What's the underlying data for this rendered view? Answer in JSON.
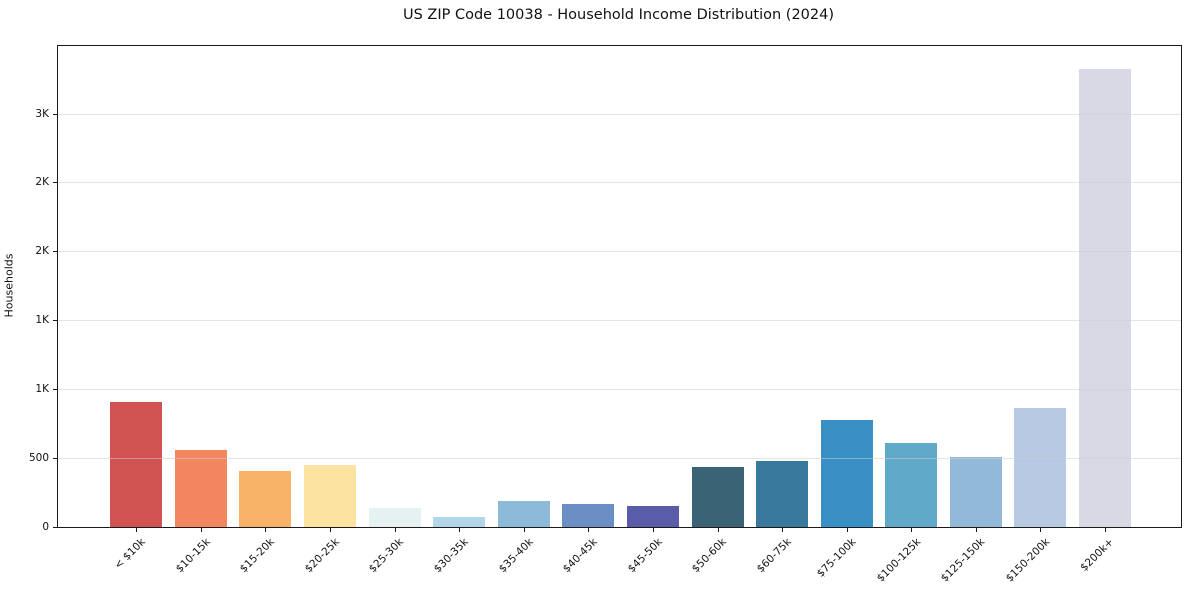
{
  "title": "US ZIP Code 10038 - Household Income Distribution (2024)",
  "chart_data": {
    "type": "bar",
    "title": "US ZIP Code 10038 - Household Income Distribution (2024)",
    "xlabel": "",
    "ylabel": "Households",
    "categories": [
      "< $10k",
      "$10-15k",
      "$15-20k",
      "$20-25k",
      "$25-30k",
      "$30-35k",
      "$35-40k",
      "$40-45k",
      "$45-50k",
      "$50-60k",
      "$60-75k",
      "$75-100k",
      "$100-125k",
      "$125-150k",
      "$150-200k",
      "$200k+"
    ],
    "values": [
      910,
      560,
      405,
      450,
      135,
      70,
      190,
      165,
      150,
      435,
      480,
      775,
      610,
      505,
      860,
      3320
    ],
    "bar_colors": [
      "#d15351",
      "#f2875f",
      "#f8b267",
      "#fbe3a2",
      "#e6f2f2",
      "#b3d6e8",
      "#8cbad8",
      "#6b8ec4",
      "#5a5ca9",
      "#3a6375",
      "#38789c",
      "#3990c4",
      "#61a9c9",
      "#93b9d8",
      "#b7c9e3",
      "#d8d9e5"
    ],
    "ylim": [
      0,
      3490
    ],
    "yticks": [
      {
        "value": 0,
        "label": "0"
      },
      {
        "value": 500,
        "label": "500"
      },
      {
        "value": 1000,
        "label": "1K"
      },
      {
        "value": 1500,
        "label": "1K"
      },
      {
        "value": 2000,
        "label": "2K"
      },
      {
        "value": 2500,
        "label": "2K"
      },
      {
        "value": 3000,
        "label": "3K"
      }
    ],
    "grid": "horizontal",
    "legend": "none"
  },
  "colors": {
    "background": "#ffffff",
    "grid": "#cdcdcd",
    "spine": "#1a1a1a",
    "text": "#111111"
  }
}
